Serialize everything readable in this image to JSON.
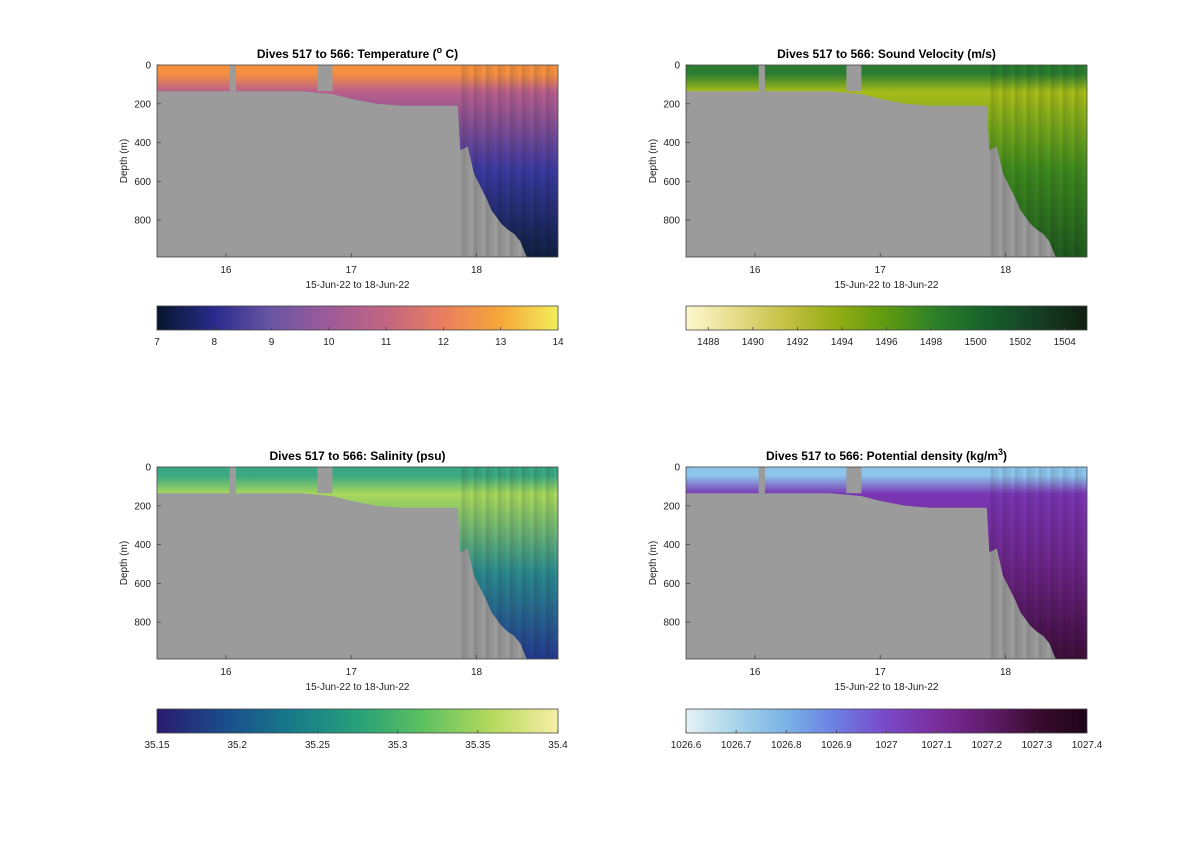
{
  "chart_data": [
    {
      "type": "heatmap",
      "title": "Dives 517 to 566: Temperature (",
      "title_sup": "o",
      "title_end": " C)",
      "xlabel": "15-Jun-22 to 18-Jun-22",
      "ylabel": "Depth (m)",
      "xlim": [
        15.45,
        18.65
      ],
      "ylim": [
        0,
        990
      ],
      "xticks": [
        16,
        17,
        18
      ],
      "yticks": [
        0,
        200,
        400,
        600,
        800
      ],
      "colorbar": {
        "ticks": [
          7,
          8,
          9,
          10,
          11,
          12,
          13,
          14
        ],
        "range": [
          7,
          14
        ],
        "colormap": [
          "#06162b",
          "#2a2a8c",
          "#6a56a4",
          "#9e5a98",
          "#c26682",
          "#e87e5e",
          "#f6a73a",
          "#f3ee5a"
        ]
      },
      "surface_color": "#f59040",
      "upper_color": "#b85f8c",
      "deep_color": "#3a3aa0",
      "bottom_color": "#0e2040",
      "bottom_depth": [
        [
          15.45,
          135
        ],
        [
          16.0,
          135
        ],
        [
          16.6,
          135
        ],
        [
          16.85,
          150
        ],
        [
          17.0,
          175
        ],
        [
          17.2,
          200
        ],
        [
          17.4,
          210
        ],
        [
          17.6,
          210
        ],
        [
          17.85,
          210
        ],
        [
          17.87,
          440
        ],
        [
          17.93,
          420
        ],
        [
          17.98,
          560
        ],
        [
          18.08,
          690
        ],
        [
          18.12,
          750
        ],
        [
          18.2,
          820
        ],
        [
          18.25,
          850
        ],
        [
          18.3,
          870
        ],
        [
          18.35,
          910
        ],
        [
          18.4,
          990
        ],
        [
          18.65,
          990
        ]
      ],
      "gaps": [
        [
          16.03,
          16.08
        ],
        [
          16.73,
          16.85
        ]
      ]
    },
    {
      "type": "heatmap",
      "title": "Dives 517 to 566: Sound Velocity (m/s)",
      "xlabel": "15-Jun-22 to 18-Jun-22",
      "ylabel": "Depth (m)",
      "xlim": [
        15.45,
        18.65
      ],
      "ylim": [
        0,
        990
      ],
      "xticks": [
        16,
        17,
        18
      ],
      "yticks": [
        0,
        200,
        400,
        600,
        800
      ],
      "colorbar": {
        "ticks": [
          1488,
          1490,
          1492,
          1494,
          1496,
          1498,
          1500,
          1502,
          1504
        ],
        "range": [
          1487,
          1505
        ],
        "colormap": [
          "#fdf8cf",
          "#e6dc88",
          "#c4c043",
          "#93ad12",
          "#5e9a10",
          "#2c8029",
          "#16602c",
          "#163f24",
          "#101e12"
        ]
      },
      "surface_color": "#2a7c30",
      "upper_color": "#a7bc1a",
      "deep_color": "#3e8a1f",
      "bottom_color": "#205a20",
      "bottom_depth": [
        [
          15.45,
          135
        ],
        [
          16.0,
          135
        ],
        [
          16.6,
          135
        ],
        [
          16.85,
          150
        ],
        [
          17.0,
          175
        ],
        [
          17.2,
          200
        ],
        [
          17.4,
          210
        ],
        [
          17.6,
          210
        ],
        [
          17.85,
          210
        ],
        [
          17.87,
          440
        ],
        [
          17.93,
          420
        ],
        [
          17.98,
          560
        ],
        [
          18.08,
          690
        ],
        [
          18.12,
          750
        ],
        [
          18.2,
          820
        ],
        [
          18.25,
          850
        ],
        [
          18.3,
          870
        ],
        [
          18.35,
          910
        ],
        [
          18.4,
          990
        ],
        [
          18.65,
          990
        ]
      ],
      "gaps": [
        [
          16.03,
          16.08
        ],
        [
          16.73,
          16.85
        ]
      ]
    },
    {
      "type": "heatmap",
      "title": "Dives 517 to 566: Salinity (psu)",
      "xlabel": "15-Jun-22 to 18-Jun-22",
      "ylabel": "Depth (m)",
      "xlim": [
        15.45,
        18.65
      ],
      "ylim": [
        0,
        990
      ],
      "xticks": [
        16,
        17,
        18
      ],
      "yticks": [
        0,
        200,
        400,
        600,
        800
      ],
      "colorbar": {
        "ticks": [
          35.15,
          35.2,
          35.25,
          35.3,
          35.35,
          35.4
        ],
        "range": [
          35.15,
          35.4
        ],
        "colormap": [
          "#2a1a6e",
          "#1a4c8c",
          "#177a8a",
          "#27a07a",
          "#5ec160",
          "#b5d95e",
          "#f7efa6"
        ]
      },
      "surface_color": "#3aa883",
      "upper_color": "#a8d85c",
      "deep_color": "#2b8a8e",
      "bottom_color": "#243a8e",
      "bottom_depth": [
        [
          15.45,
          135
        ],
        [
          16.0,
          135
        ],
        [
          16.6,
          135
        ],
        [
          16.85,
          150
        ],
        [
          17.0,
          175
        ],
        [
          17.2,
          200
        ],
        [
          17.4,
          210
        ],
        [
          17.6,
          210
        ],
        [
          17.85,
          210
        ],
        [
          17.87,
          440
        ],
        [
          17.93,
          420
        ],
        [
          17.98,
          560
        ],
        [
          18.08,
          690
        ],
        [
          18.12,
          750
        ],
        [
          18.2,
          820
        ],
        [
          18.25,
          850
        ],
        [
          18.3,
          870
        ],
        [
          18.35,
          910
        ],
        [
          18.4,
          990
        ],
        [
          18.65,
          990
        ]
      ],
      "gaps": [
        [
          16.03,
          16.08
        ],
        [
          16.73,
          16.85
        ]
      ]
    },
    {
      "type": "heatmap",
      "title": "Dives 517 to 566: Potential density (kg/m",
      "title_sup": "3",
      "title_end": ")",
      "xlabel": "15-Jun-22 to 18-Jun-22",
      "ylabel": "Depth (m)",
      "xlim": [
        15.45,
        18.65
      ],
      "ylim": [
        0,
        990
      ],
      "xticks": [
        16,
        17,
        18
      ],
      "yticks": [
        0,
        200,
        400,
        600,
        800
      ],
      "colorbar": {
        "ticks": [
          1026.6,
          1026.7,
          1026.8,
          1026.9,
          1027,
          1027.1,
          1027.2,
          1027.3,
          1027.4
        ],
        "range": [
          1026.6,
          1027.4
        ],
        "colormap": [
          "#e6f2f6",
          "#a8d4ea",
          "#7ab2e6",
          "#6c7ee2",
          "#7a48c8",
          "#7a2e9e",
          "#621c6e",
          "#3a0c30",
          "#1e0418"
        ]
      },
      "surface_color": "#8cc4ea",
      "upper_color": "#7a36b4",
      "deep_color": "#6a2484",
      "bottom_color": "#3e0e3a",
      "bottom_depth": [
        [
          15.45,
          135
        ],
        [
          16.0,
          135
        ],
        [
          16.6,
          135
        ],
        [
          16.85,
          150
        ],
        [
          17.0,
          175
        ],
        [
          17.2,
          200
        ],
        [
          17.4,
          210
        ],
        [
          17.6,
          210
        ],
        [
          17.85,
          210
        ],
        [
          17.87,
          440
        ],
        [
          17.93,
          420
        ],
        [
          17.98,
          560
        ],
        [
          18.08,
          690
        ],
        [
          18.12,
          750
        ],
        [
          18.2,
          820
        ],
        [
          18.25,
          850
        ],
        [
          18.3,
          870
        ],
        [
          18.35,
          910
        ],
        [
          18.4,
          990
        ],
        [
          18.65,
          990
        ]
      ],
      "gaps": [
        [
          16.03,
          16.08
        ],
        [
          16.73,
          16.85
        ]
      ]
    }
  ]
}
